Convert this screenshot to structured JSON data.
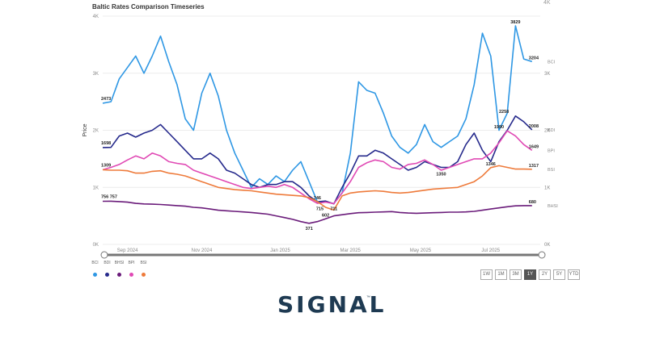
{
  "chart_data": {
    "type": "line",
    "title": "Baltic Rates Comparison Timeseries",
    "ylabel": "Price",
    "ylim": [
      0,
      4000
    ],
    "yticks": [
      "0K",
      "1K",
      "2K",
      "3K",
      "4K"
    ],
    "xlim": [
      0,
      53
    ],
    "xticks": [
      {
        "x": 3,
        "label": "Sep 2024"
      },
      {
        "x": 12,
        "label": "Nov 2024"
      },
      {
        "x": 21.5,
        "label": "Jan 2025"
      },
      {
        "x": 30,
        "label": "Mar 2025"
      },
      {
        "x": 38.5,
        "label": "May 2025"
      },
      {
        "x": 47,
        "label": "Jul 2025"
      }
    ],
    "grid": true,
    "legend_position": "bottom-left",
    "series": [
      {
        "name": "BCI",
        "color": "#2e97e4",
        "points": [
          [
            0,
            2473
          ],
          [
            1,
            2500
          ],
          [
            2,
            2900
          ],
          [
            3,
            3100
          ],
          [
            4,
            3300
          ],
          [
            5,
            3000
          ],
          [
            6,
            3300
          ],
          [
            7,
            3650
          ],
          [
            8,
            3200
          ],
          [
            9,
            2800
          ],
          [
            10,
            2200
          ],
          [
            11,
            2000
          ],
          [
            12,
            2650
          ],
          [
            13,
            3000
          ],
          [
            14,
            2600
          ],
          [
            15,
            2000
          ],
          [
            16,
            1600
          ],
          [
            17,
            1300
          ],
          [
            18,
            1000
          ],
          [
            19,
            1150
          ],
          [
            20,
            1050
          ],
          [
            21,
            1200
          ],
          [
            22,
            1100
          ],
          [
            23,
            1300
          ],
          [
            24,
            1450
          ],
          [
            25,
            1100
          ],
          [
            26,
            746
          ],
          [
            27,
            750
          ],
          [
            28,
            715
          ],
          [
            29,
            900
          ],
          [
            30,
            1600
          ],
          [
            31,
            2850
          ],
          [
            32,
            2700
          ],
          [
            33,
            2650
          ],
          [
            34,
            2300
          ],
          [
            35,
            1900
          ],
          [
            36,
            1700
          ],
          [
            37,
            1600
          ],
          [
            38,
            1750
          ],
          [
            39,
            2100
          ],
          [
            40,
            1800
          ],
          [
            41,
            1700
          ],
          [
            42,
            1800
          ],
          [
            43,
            1900
          ],
          [
            44,
            2200
          ],
          [
            45,
            2800
          ],
          [
            46,
            3700
          ],
          [
            47,
            3300
          ],
          [
            48,
            2000
          ],
          [
            49,
            2300
          ],
          [
            50,
            3829
          ],
          [
            51,
            3250
          ],
          [
            52,
            3204
          ]
        ]
      },
      {
        "name": "BDI",
        "color": "#262a8c",
        "points": [
          [
            0,
            1698
          ],
          [
            1,
            1700
          ],
          [
            2,
            1900
          ],
          [
            3,
            1950
          ],
          [
            4,
            1880
          ],
          [
            5,
            1950
          ],
          [
            6,
            2000
          ],
          [
            7,
            2100
          ],
          [
            8,
            1950
          ],
          [
            9,
            1800
          ],
          [
            10,
            1650
          ],
          [
            11,
            1500
          ],
          [
            12,
            1500
          ],
          [
            13,
            1600
          ],
          [
            14,
            1500
          ],
          [
            15,
            1300
          ],
          [
            16,
            1250
          ],
          [
            17,
            1150
          ],
          [
            18,
            1050
          ],
          [
            19,
            1000
          ],
          [
            20,
            1050
          ],
          [
            21,
            1050
          ],
          [
            22,
            1100
          ],
          [
            23,
            1100
          ],
          [
            24,
            1000
          ],
          [
            25,
            850
          ],
          [
            26,
            746
          ],
          [
            27,
            760
          ],
          [
            28,
            711
          ],
          [
            29,
            1000
          ],
          [
            30,
            1250
          ],
          [
            31,
            1550
          ],
          [
            32,
            1550
          ],
          [
            33,
            1650
          ],
          [
            34,
            1600
          ],
          [
            35,
            1500
          ],
          [
            36,
            1400
          ],
          [
            37,
            1300
          ],
          [
            38,
            1350
          ],
          [
            39,
            1450
          ],
          [
            40,
            1400
          ],
          [
            41,
            1350
          ],
          [
            42,
            1350
          ],
          [
            43,
            1450
          ],
          [
            44,
            1750
          ],
          [
            45,
            1950
          ],
          [
            46,
            1650
          ],
          [
            47,
            1450
          ],
          [
            48,
            1800
          ],
          [
            49,
            2000
          ],
          [
            50,
            2250
          ],
          [
            51,
            2150
          ],
          [
            52,
            2008
          ]
        ]
      },
      {
        "name": "BHSI",
        "color": "#6a1b7a",
        "points": [
          [
            0,
            756
          ],
          [
            1,
            757
          ],
          [
            2,
            750
          ],
          [
            3,
            740
          ],
          [
            4,
            720
          ],
          [
            5,
            710
          ],
          [
            6,
            705
          ],
          [
            7,
            700
          ],
          [
            8,
            690
          ],
          [
            9,
            680
          ],
          [
            10,
            670
          ],
          [
            11,
            650
          ],
          [
            12,
            640
          ],
          [
            13,
            620
          ],
          [
            14,
            600
          ],
          [
            15,
            590
          ],
          [
            16,
            580
          ],
          [
            17,
            570
          ],
          [
            18,
            560
          ],
          [
            19,
            545
          ],
          [
            20,
            530
          ],
          [
            21,
            500
          ],
          [
            22,
            470
          ],
          [
            23,
            440
          ],
          [
            24,
            400
          ],
          [
            25,
            371
          ],
          [
            26,
            400
          ],
          [
            27,
            450
          ],
          [
            28,
            500
          ],
          [
            29,
            520
          ],
          [
            30,
            540
          ],
          [
            31,
            555
          ],
          [
            32,
            560
          ],
          [
            33,
            565
          ],
          [
            34,
            570
          ],
          [
            35,
            575
          ],
          [
            36,
            560
          ],
          [
            37,
            550
          ],
          [
            38,
            545
          ],
          [
            39,
            550
          ],
          [
            40,
            555
          ],
          [
            41,
            560
          ],
          [
            42,
            565
          ],
          [
            43,
            565
          ],
          [
            44,
            570
          ],
          [
            45,
            580
          ],
          [
            46,
            600
          ],
          [
            47,
            620
          ],
          [
            48,
            640
          ],
          [
            49,
            660
          ],
          [
            50,
            675
          ],
          [
            51,
            680
          ],
          [
            52,
            680
          ]
        ]
      },
      {
        "name": "BPI",
        "color": "#e049b4",
        "points": [
          [
            0,
            1309
          ],
          [
            1,
            1350
          ],
          [
            2,
            1400
          ],
          [
            3,
            1480
          ],
          [
            4,
            1550
          ],
          [
            5,
            1500
          ],
          [
            6,
            1600
          ],
          [
            7,
            1550
          ],
          [
            8,
            1450
          ],
          [
            9,
            1420
          ],
          [
            10,
            1400
          ],
          [
            11,
            1300
          ],
          [
            12,
            1250
          ],
          [
            13,
            1200
          ],
          [
            14,
            1150
          ],
          [
            15,
            1100
          ],
          [
            16,
            1050
          ],
          [
            17,
            1000
          ],
          [
            18,
            980
          ],
          [
            19,
            1000
          ],
          [
            20,
            1020
          ],
          [
            21,
            1000
          ],
          [
            22,
            1050
          ],
          [
            23,
            1000
          ],
          [
            24,
            900
          ],
          [
            25,
            800
          ],
          [
            26,
            720
          ],
          [
            27,
            740
          ],
          [
            28,
            715
          ],
          [
            29,
            900
          ],
          [
            30,
            1100
          ],
          [
            31,
            1350
          ],
          [
            32,
            1430
          ],
          [
            33,
            1480
          ],
          [
            34,
            1450
          ],
          [
            35,
            1350
          ],
          [
            36,
            1320
          ],
          [
            37,
            1400
          ],
          [
            38,
            1420
          ],
          [
            39,
            1480
          ],
          [
            40,
            1400
          ],
          [
            41,
            1300
          ],
          [
            42,
            1350
          ],
          [
            43,
            1400
          ],
          [
            44,
            1450
          ],
          [
            45,
            1500
          ],
          [
            46,
            1500
          ],
          [
            47,
            1600
          ],
          [
            48,
            1780
          ],
          [
            49,
            1990
          ],
          [
            50,
            1900
          ],
          [
            51,
            1750
          ],
          [
            52,
            1649
          ]
        ]
      },
      {
        "name": "BSI",
        "color": "#ee7a3a",
        "points": [
          [
            0,
            1309
          ],
          [
            1,
            1300
          ],
          [
            2,
            1300
          ],
          [
            3,
            1290
          ],
          [
            4,
            1250
          ],
          [
            5,
            1250
          ],
          [
            6,
            1280
          ],
          [
            7,
            1290
          ],
          [
            8,
            1250
          ],
          [
            9,
            1230
          ],
          [
            10,
            1200
          ],
          [
            11,
            1150
          ],
          [
            12,
            1100
          ],
          [
            13,
            1050
          ],
          [
            14,
            1000
          ],
          [
            15,
            980
          ],
          [
            16,
            960
          ],
          [
            17,
            950
          ],
          [
            18,
            940
          ],
          [
            19,
            920
          ],
          [
            20,
            900
          ],
          [
            21,
            880
          ],
          [
            22,
            870
          ],
          [
            23,
            860
          ],
          [
            24,
            850
          ],
          [
            25,
            820
          ],
          [
            26,
            750
          ],
          [
            27,
            650
          ],
          [
            28,
            602
          ],
          [
            29,
            850
          ],
          [
            30,
            900
          ],
          [
            31,
            920
          ],
          [
            32,
            930
          ],
          [
            33,
            940
          ],
          [
            34,
            930
          ],
          [
            35,
            910
          ],
          [
            36,
            900
          ],
          [
            37,
            910
          ],
          [
            38,
            930
          ],
          [
            39,
            950
          ],
          [
            40,
            970
          ],
          [
            41,
            980
          ],
          [
            42,
            990
          ],
          [
            43,
            1000
          ],
          [
            44,
            1050
          ],
          [
            45,
            1100
          ],
          [
            46,
            1200
          ],
          [
            47,
            1346
          ],
          [
            48,
            1380
          ],
          [
            49,
            1350
          ],
          [
            50,
            1320
          ],
          [
            51,
            1320
          ],
          [
            52,
            1317
          ]
        ]
      }
    ],
    "data_labels": [
      {
        "series": "BCI",
        "text": "2473",
        "x": 0,
        "y": 2473
      },
      {
        "series": "BDI",
        "text": "1698",
        "x": 0,
        "y": 1698
      },
      {
        "series": "BPI",
        "text": "1309",
        "x": 0,
        "y": 1309
      },
      {
        "series": "BHSI",
        "text": "756 757",
        "x": 0,
        "y": 756
      },
      {
        "series": "BCI",
        "text": "3829",
        "x": 50,
        "y": 3829
      },
      {
        "series": "BCI",
        "text": "3204",
        "x": 52,
        "y": 3204
      },
      {
        "series": "BDI",
        "text": "2258",
        "x": 48.6,
        "y": 2258
      },
      {
        "series": "BDI",
        "text": "2008",
        "x": 52,
        "y": 2008
      },
      {
        "series": "BPI",
        "text": "1990",
        "x": 48,
        "y": 1990
      },
      {
        "series": "BPI",
        "text": "1649",
        "x": 52,
        "y": 1649
      },
      {
        "series": "BSI",
        "text": "1346",
        "x": 47,
        "y": 1346
      },
      {
        "series": "BSI",
        "text": "1317",
        "x": 52,
        "y": 1317
      },
      {
        "series": "BDI",
        "text": "1350",
        "x": 41,
        "y": 1350
      },
      {
        "series": "BHSI",
        "text": "680",
        "x": 52,
        "y": 680
      },
      {
        "series": "BCI",
        "text": "746",
        "x": 26,
        "y": 746
      },
      {
        "series": "BPI",
        "text": "715",
        "x": 26.3,
        "y": 715
      },
      {
        "series": "BDI",
        "text": "711",
        "x": 28,
        "y": 711
      },
      {
        "series": "BSI",
        "text": "602",
        "x": 27,
        "y": 602
      },
      {
        "series": "BHSI",
        "text": "371",
        "x": 25,
        "y": 371
      }
    ],
    "end_labels": [
      "BCI",
      "BDI",
      "BPI",
      "BSI",
      "BHSI"
    ]
  },
  "top_right_tick": "4K",
  "legend": [
    {
      "label": "BCI",
      "color": "#2e97e4"
    },
    {
      "label": "BDI",
      "color": "#262a8c"
    },
    {
      "label": "BHSI",
      "color": "#6a1b7a"
    },
    {
      "label": "BPI",
      "color": "#e049b4"
    },
    {
      "label": "BSI",
      "color": "#ee7a3a"
    }
  ],
  "range_buttons": [
    {
      "label": "1W",
      "active": false
    },
    {
      "label": "1M",
      "active": false
    },
    {
      "label": "3M",
      "active": false
    },
    {
      "label": "1Y",
      "active": true
    },
    {
      "label": "2Y",
      "active": false
    },
    {
      "label": "5Y",
      "active": false
    },
    {
      "label": "YTD",
      "active": false
    }
  ],
  "brand": {
    "name": "SIGNAL",
    "trademark": "™"
  }
}
